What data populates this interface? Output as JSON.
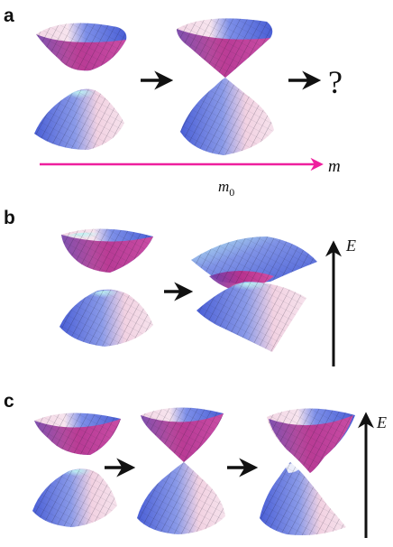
{
  "panels": {
    "a": {
      "label": "a",
      "question": "?",
      "axis_label": "m",
      "critical_label": "m",
      "critical_subscript": "0"
    },
    "b": {
      "label": "b",
      "energy_label": "E"
    },
    "c": {
      "label": "c",
      "energy_label": "E"
    }
  },
  "colors": {
    "pink_arrow": "#ee1f9e",
    "black_arrow": "#111111",
    "surface_blue": "#5d72dc",
    "surface_pink": "#f0c4d8",
    "surface_magenta": "#c02a86",
    "surface_cyan": "#9fe8ec"
  }
}
